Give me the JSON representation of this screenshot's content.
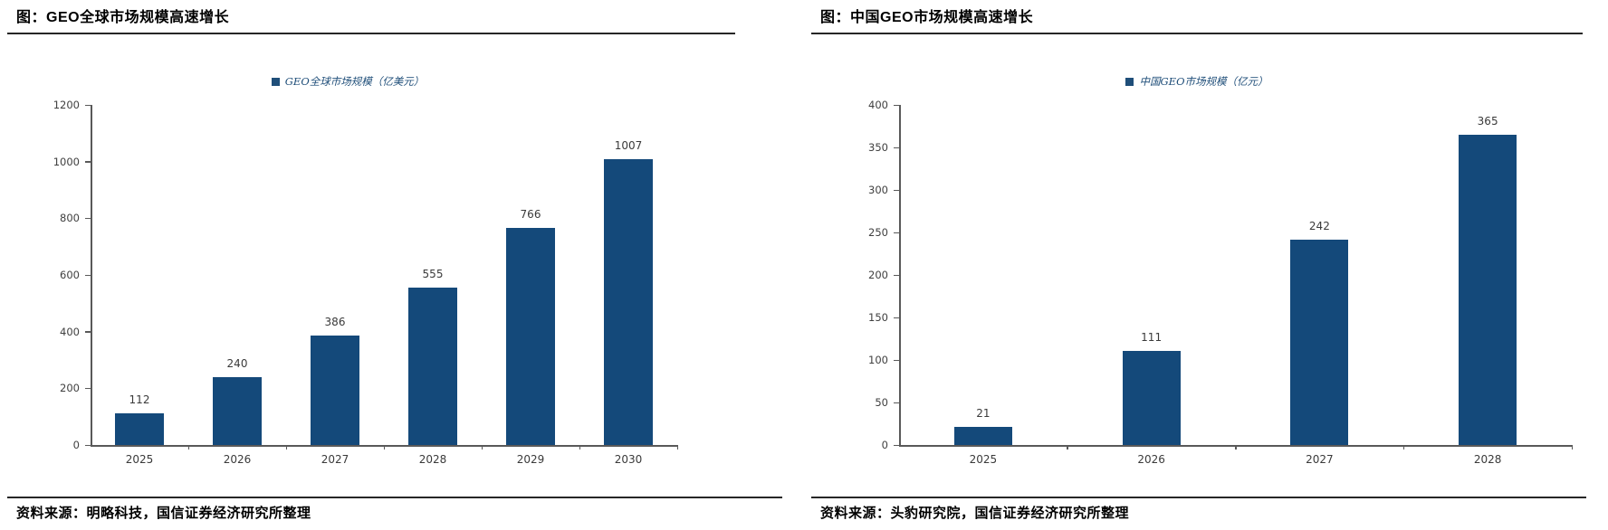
{
  "panels": [
    {
      "title": "图：GEO全球市场规模高速增长",
      "source": "资料来源：明略科技，国信证券经济研究所整理"
    },
    {
      "title": "图：中国GEO市场规模高速增长",
      "source": "资料来源：头豹研究院，国信证券经济研究所整理"
    }
  ],
  "colors": {
    "bar": "#14497A",
    "legend_text": "#1F4E79",
    "axis_line": "#595959",
    "rule": "#262626"
  },
  "chart_data": [
    {
      "type": "bar",
      "title": "",
      "legend": "GEO全球市场规模（亿美元）",
      "categories": [
        "2025",
        "2026",
        "2027",
        "2028",
        "2029",
        "2030"
      ],
      "values": [
        112,
        240,
        386,
        555,
        766,
        1007
      ],
      "xlabel": "",
      "ylabel": "",
      "ylim": [
        0,
        1200
      ],
      "ytick_step": 200,
      "bar_color": "#14497A",
      "data_labels": true,
      "legend_position": "top-center",
      "grid": false
    },
    {
      "type": "bar",
      "title": "",
      "legend": "中国GEO市场规模（亿元）",
      "categories": [
        "2025",
        "2026",
        "2027",
        "2028"
      ],
      "values": [
        21,
        111,
        242,
        365
      ],
      "xlabel": "",
      "ylabel": "",
      "ylim": [
        0,
        400
      ],
      "ytick_step": 50,
      "bar_color": "#14497A",
      "data_labels": true,
      "legend_position": "top-center",
      "grid": false
    }
  ]
}
